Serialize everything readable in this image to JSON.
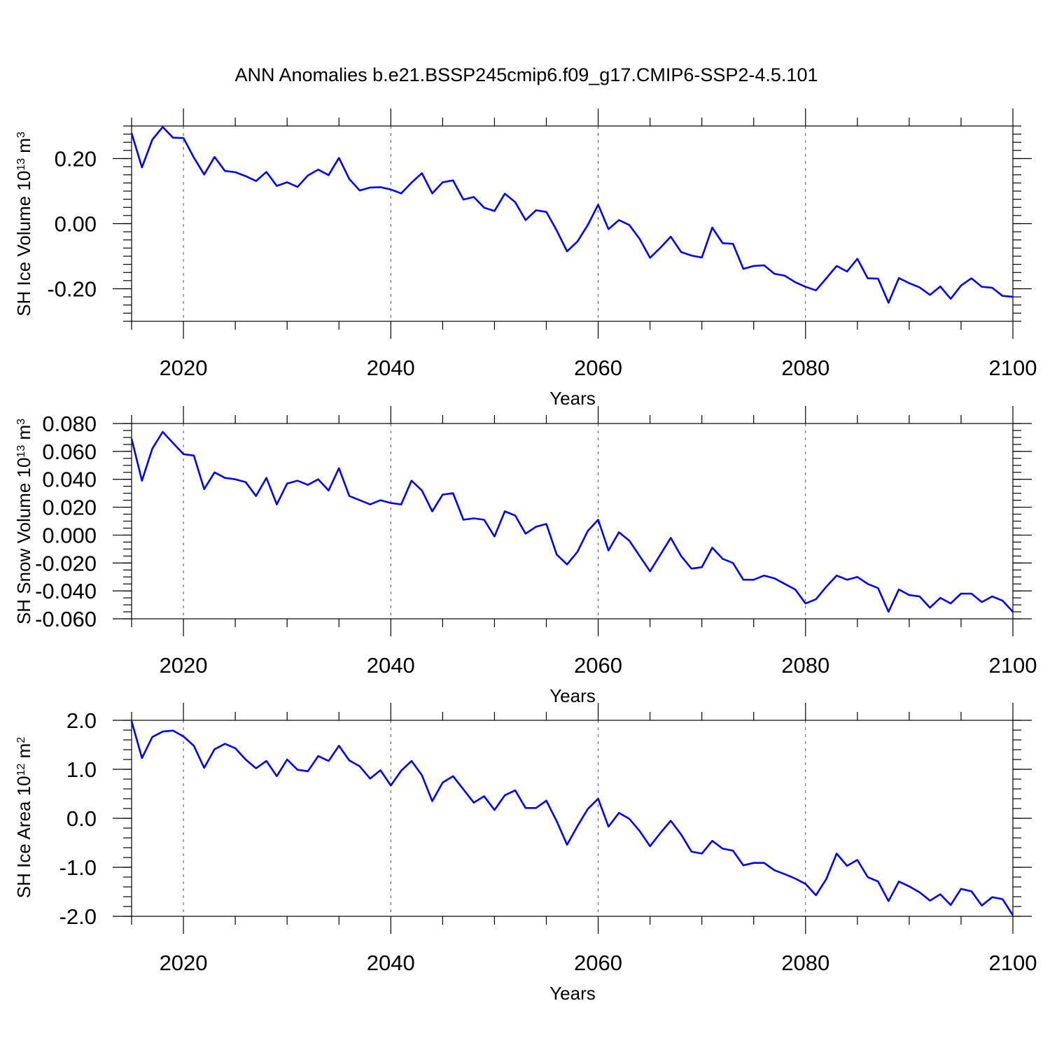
{
  "title": "ANN Anomalies b.e21.BSSP245cmip6.f09_g17.CMIP6-SSP2-4.5.101",
  "line_color": "#0000ff",
  "chart_data": [
    {
      "type": "line",
      "xlabel": "Years",
      "ylabel": {
        "base": "SH Ice Volume 10",
        "exp1": "13",
        "unit": " m",
        "exp2": "3"
      },
      "xlim": [
        2015,
        2100
      ],
      "ylim": [
        -0.3,
        0.3
      ],
      "xticks": [
        "2020",
        "2040",
        "2060",
        "2080",
        "2100"
      ],
      "yticks": [
        "0.20",
        "0.00",
        "-0.20"
      ],
      "grid": "vertical dashed at major x ticks",
      "x": [
        2015,
        2016,
        2017,
        2018,
        2019,
        2020,
        2021,
        2022,
        2023,
        2024,
        2025,
        2026,
        2027,
        2028,
        2029,
        2030,
        2031,
        2032,
        2033,
        2034,
        2035,
        2036,
        2037,
        2038,
        2039,
        2040,
        2041,
        2042,
        2043,
        2044,
        2045,
        2046,
        2047,
        2048,
        2049,
        2050,
        2051,
        2052,
        2053,
        2054,
        2055,
        2056,
        2057,
        2058,
        2059,
        2060,
        2061,
        2062,
        2063,
        2064,
        2065,
        2066,
        2067,
        2068,
        2069,
        2070,
        2071,
        2072,
        2073,
        2074,
        2075,
        2076,
        2077,
        2078,
        2079,
        2080,
        2081,
        2082,
        2083,
        2084,
        2085,
        2086,
        2087,
        2088,
        2089,
        2090,
        2091,
        2092,
        2093,
        2094,
        2095,
        2096,
        2097,
        2098,
        2099,
        2100
      ],
      "values": [
        0.278,
        0.173,
        0.258,
        0.297,
        0.264,
        0.263,
        0.203,
        0.151,
        0.205,
        0.162,
        0.158,
        0.146,
        0.131,
        0.159,
        0.116,
        0.127,
        0.113,
        0.148,
        0.166,
        0.149,
        0.202,
        0.137,
        0.102,
        0.111,
        0.112,
        0.105,
        0.093,
        0.126,
        0.155,
        0.093,
        0.127,
        0.133,
        0.074,
        0.082,
        0.049,
        0.039,
        0.092,
        0.066,
        0.011,
        0.041,
        0.036,
        -0.021,
        -0.085,
        -0.055,
        -0.004,
        0.058,
        -0.017,
        0.011,
        -0.004,
        -0.047,
        -0.105,
        -0.074,
        -0.04,
        -0.087,
        -0.098,
        -0.104,
        -0.012,
        -0.06,
        -0.062,
        -0.139,
        -0.13,
        -0.128,
        -0.154,
        -0.16,
        -0.18,
        -0.194,
        -0.205,
        -0.168,
        -0.13,
        -0.147,
        -0.108,
        -0.168,
        -0.169,
        -0.243,
        -0.167,
        -0.183,
        -0.196,
        -0.219,
        -0.193,
        -0.231,
        -0.19,
        -0.168,
        -0.194,
        -0.197,
        -0.222,
        -0.225
      ]
    },
    {
      "type": "line",
      "xlabel": "Years",
      "ylabel": {
        "base": "SH Snow Volume 10",
        "exp1": "13",
        "unit": " m",
        "exp2": "3"
      },
      "xlim": [
        2015,
        2100
      ],
      "ylim": [
        -0.06,
        0.08
      ],
      "xticks": [
        "2020",
        "2040",
        "2060",
        "2080",
        "2100"
      ],
      "yticks": [
        "0.080",
        "0.060",
        "0.040",
        "0.020",
        "0.000",
        "-0.020",
        "-0.040",
        "-0.060"
      ],
      "grid": "vertical dashed at major x ticks",
      "x": [
        2015,
        2016,
        2017,
        2018,
        2019,
        2020,
        2021,
        2022,
        2023,
        2024,
        2025,
        2026,
        2027,
        2028,
        2029,
        2030,
        2031,
        2032,
        2033,
        2034,
        2035,
        2036,
        2037,
        2038,
        2039,
        2040,
        2041,
        2042,
        2043,
        2044,
        2045,
        2046,
        2047,
        2048,
        2049,
        2050,
        2051,
        2052,
        2053,
        2054,
        2055,
        2056,
        2057,
        2058,
        2059,
        2060,
        2061,
        2062,
        2063,
        2064,
        2065,
        2066,
        2067,
        2068,
        2069,
        2070,
        2071,
        2072,
        2073,
        2074,
        2075,
        2076,
        2077,
        2078,
        2079,
        2080,
        2081,
        2082,
        2083,
        2084,
        2085,
        2086,
        2087,
        2088,
        2089,
        2090,
        2091,
        2092,
        2093,
        2094,
        2095,
        2096,
        2097,
        2098,
        2099,
        2100
      ],
      "values": [
        0.069,
        0.039,
        0.062,
        0.074,
        0.066,
        0.058,
        0.057,
        0.033,
        0.045,
        0.041,
        0.04,
        0.038,
        0.028,
        0.041,
        0.022,
        0.037,
        0.039,
        0.036,
        0.04,
        0.032,
        0.048,
        0.028,
        0.025,
        0.022,
        0.025,
        0.023,
        0.022,
        0.039,
        0.032,
        0.017,
        0.029,
        0.03,
        0.011,
        0.012,
        0.011,
        -0.001,
        0.017,
        0.014,
        0.001,
        0.006,
        0.008,
        -0.014,
        -0.021,
        -0.012,
        0.003,
        0.011,
        -0.011,
        0.002,
        -0.004,
        -0.015,
        -0.026,
        -0.014,
        -0.002,
        -0.015,
        -0.024,
        -0.023,
        -0.009,
        -0.017,
        -0.02,
        -0.032,
        -0.032,
        -0.029,
        -0.031,
        -0.035,
        -0.039,
        -0.049,
        -0.046,
        -0.037,
        -0.029,
        -0.032,
        -0.03,
        -0.035,
        -0.038,
        -0.055,
        -0.039,
        -0.043,
        -0.044,
        -0.052,
        -0.045,
        -0.049,
        -0.042,
        -0.042,
        -0.048,
        -0.044,
        -0.047,
        -0.055
      ]
    },
    {
      "type": "line",
      "xlabel": "Years",
      "ylabel": {
        "base": "SH Ice Area 10",
        "exp1": "12",
        "unit": " m",
        "exp2": "2"
      },
      "xlim": [
        2015,
        2100
      ],
      "ylim": [
        -2.0,
        2.0
      ],
      "xticks": [
        "2020",
        "2040",
        "2060",
        "2080",
        "2100"
      ],
      "yticks": [
        "2.0",
        "1.0",
        "0.0",
        "-1.0",
        "-2.0"
      ],
      "grid": "vertical dashed at major x ticks",
      "x": [
        2015,
        2016,
        2017,
        2018,
        2019,
        2020,
        2021,
        2022,
        2023,
        2024,
        2025,
        2026,
        2027,
        2028,
        2029,
        2030,
        2031,
        2032,
        2033,
        2034,
        2035,
        2036,
        2037,
        2038,
        2039,
        2040,
        2041,
        2042,
        2043,
        2044,
        2045,
        2046,
        2047,
        2048,
        2049,
        2050,
        2051,
        2052,
        2053,
        2054,
        2055,
        2056,
        2057,
        2058,
        2059,
        2060,
        2061,
        2062,
        2063,
        2064,
        2065,
        2066,
        2067,
        2068,
        2069,
        2070,
        2071,
        2072,
        2073,
        2074,
        2075,
        2076,
        2077,
        2078,
        2079,
        2080,
        2081,
        2082,
        2083,
        2084,
        2085,
        2086,
        2087,
        2088,
        2089,
        2090,
        2091,
        2092,
        2093,
        2094,
        2095,
        2096,
        2097,
        2098,
        2099,
        2100
      ],
      "values": [
        1.98,
        1.23,
        1.66,
        1.77,
        1.79,
        1.67,
        1.48,
        1.03,
        1.41,
        1.52,
        1.43,
        1.2,
        1.02,
        1.17,
        0.86,
        1.2,
        0.99,
        0.96,
        1.27,
        1.17,
        1.48,
        1.18,
        1.06,
        0.81,
        0.98,
        0.67,
        0.97,
        1.17,
        0.88,
        0.35,
        0.73,
        0.86,
        0.59,
        0.32,
        0.45,
        0.17,
        0.47,
        0.57,
        0.21,
        0.21,
        0.36,
        -0.06,
        -0.54,
        -0.16,
        0.19,
        0.4,
        -0.17,
        0.11,
        -0.01,
        -0.26,
        -0.57,
        -0.3,
        -0.05,
        -0.33,
        -0.68,
        -0.72,
        -0.46,
        -0.62,
        -0.66,
        -0.96,
        -0.91,
        -0.91,
        -1.06,
        -1.14,
        -1.23,
        -1.34,
        -1.57,
        -1.24,
        -0.72,
        -0.97,
        -0.85,
        -1.2,
        -1.29,
        -1.69,
        -1.29,
        -1.39,
        -1.51,
        -1.68,
        -1.55,
        -1.77,
        -1.44,
        -1.49,
        -1.78,
        -1.61,
        -1.65,
        -1.98
      ]
    }
  ]
}
